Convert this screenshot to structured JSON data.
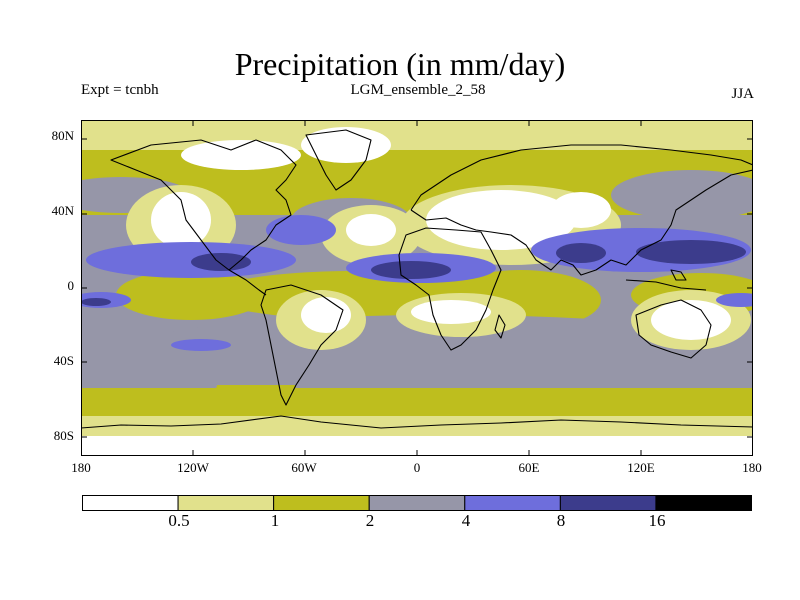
{
  "header": {
    "title": "Precipitation (in mm/day)",
    "experiment": "Expt = tcnbh",
    "run": "LGM_ensemble_2_58",
    "season": "JJA"
  },
  "axes": {
    "lat_labels": [
      "80N",
      "40N",
      "0",
      "40S",
      "80S"
    ],
    "lon_labels": [
      "180",
      "120W",
      "60W",
      "0",
      "60E",
      "120E",
      "180"
    ]
  },
  "colorbar": {
    "levels": [
      "0.5",
      "1",
      "2",
      "4",
      "8",
      "16"
    ],
    "colors": [
      "#ffffff",
      "#e1e18c",
      "#bebe1e",
      "#9696a8",
      "#6e6edc",
      "#3c3c8c",
      "#000000"
    ]
  }
}
